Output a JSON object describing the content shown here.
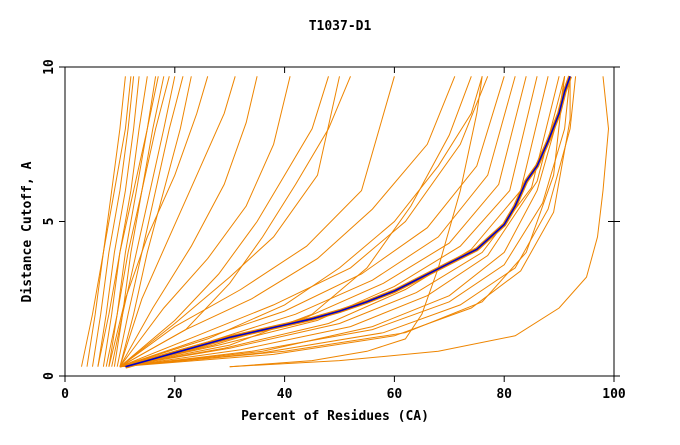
{
  "chart_data": {
    "type": "line",
    "title": "T1037-D1",
    "xlabel": "Percent of Residues (CA)",
    "ylabel": "Distance Cutoff, A",
    "xlim": [
      0,
      100
    ],
    "ylim": [
      0,
      10
    ],
    "x_ticks": [
      "0",
      "20",
      "40",
      "60",
      "80",
      "100"
    ],
    "y_ticks": [
      "0",
      "5",
      "10"
    ],
    "grid": false,
    "legend": "none",
    "colors": {
      "models": "#ee8500",
      "highlight": "#0000cc",
      "axis": "#000000"
    },
    "highlight_series": {
      "points": [
        [
          11,
          0.3
        ],
        [
          15,
          0.5
        ],
        [
          20,
          0.75
        ],
        [
          25,
          1.0
        ],
        [
          30,
          1.25
        ],
        [
          35,
          1.45
        ],
        [
          40,
          1.65
        ],
        [
          45,
          1.85
        ],
        [
          50,
          2.1
        ],
        [
          55,
          2.4
        ],
        [
          60,
          2.75
        ],
        [
          65,
          3.2
        ],
        [
          70,
          3.65
        ],
        [
          75,
          4.1
        ],
        [
          80,
          4.9
        ],
        [
          82,
          5.5
        ],
        [
          84,
          6.3
        ],
        [
          86,
          6.8
        ],
        [
          88,
          7.6
        ],
        [
          90,
          8.5
        ],
        [
          91,
          9.2
        ],
        [
          92,
          9.7
        ]
      ]
    },
    "series": [
      {
        "points": [
          [
            4,
            0.3
          ],
          [
            5.5,
            2
          ],
          [
            7,
            4
          ],
          [
            8.5,
            6
          ],
          [
            10,
            8
          ],
          [
            11,
            9.7
          ]
        ]
      },
      {
        "points": [
          [
            5,
            0.3
          ],
          [
            6.5,
            2
          ],
          [
            8,
            4
          ],
          [
            10,
            6
          ],
          [
            11.5,
            8
          ],
          [
            12.5,
            9.7
          ]
        ]
      },
      {
        "points": [
          [
            6,
            0.3
          ],
          [
            7.5,
            2
          ],
          [
            9,
            4
          ],
          [
            11,
            6
          ],
          [
            12.5,
            8
          ],
          [
            13.5,
            9.7
          ]
        ]
      },
      {
        "points": [
          [
            7,
            0.3
          ],
          [
            8.5,
            2
          ],
          [
            10,
            4
          ],
          [
            12,
            6
          ],
          [
            13.5,
            8
          ],
          [
            15,
            9.7
          ]
        ]
      },
      {
        "points": [
          [
            8,
            0.3
          ],
          [
            9.5,
            2
          ],
          [
            11,
            4
          ],
          [
            13,
            6
          ],
          [
            15,
            8
          ],
          [
            16.5,
            9.7
          ]
        ]
      },
      {
        "points": [
          [
            9,
            0.3
          ],
          [
            10.5,
            2
          ],
          [
            12,
            4
          ],
          [
            14,
            6
          ],
          [
            16,
            8
          ],
          [
            18,
            9.7
          ]
        ]
      },
      {
        "points": [
          [
            6,
            0.3
          ],
          [
            8,
            2
          ],
          [
            10,
            4
          ],
          [
            12.5,
            6
          ],
          [
            15,
            8
          ],
          [
            17,
            9.7
          ]
        ]
      },
      {
        "points": [
          [
            7.5,
            0.3
          ],
          [
            9.5,
            2
          ],
          [
            11.5,
            4
          ],
          [
            14,
            6
          ],
          [
            16.5,
            8
          ],
          [
            19,
            9.7
          ]
        ]
      },
      {
        "points": [
          [
            8.5,
            0.3
          ],
          [
            10.5,
            2
          ],
          [
            13,
            4
          ],
          [
            15.5,
            6
          ],
          [
            18,
            8
          ],
          [
            20,
            9.7
          ]
        ]
      },
      {
        "points": [
          [
            9.5,
            0.3
          ],
          [
            11.5,
            2
          ],
          [
            14,
            4
          ],
          [
            16.5,
            6
          ],
          [
            19,
            8
          ],
          [
            21.5,
            9.7
          ]
        ]
      },
      {
        "points": [
          [
            10,
            0.3
          ],
          [
            12.5,
            2
          ],
          [
            15,
            4
          ],
          [
            18,
            6
          ],
          [
            21,
            8
          ],
          [
            23,
            9.7
          ]
        ]
      },
      {
        "points": [
          [
            3,
            0.3
          ],
          [
            5,
            2
          ],
          [
            7,
            4
          ],
          [
            9,
            6
          ],
          [
            11,
            8
          ],
          [
            12,
            9.7
          ]
        ]
      },
      {
        "points": [
          [
            8,
            0.3
          ],
          [
            11,
            2.5
          ],
          [
            15,
            4.5
          ],
          [
            20,
            6.5
          ],
          [
            24,
            8.5
          ],
          [
            26,
            9.7
          ]
        ]
      },
      {
        "points": [
          [
            10,
            0.3
          ],
          [
            14,
            2.5
          ],
          [
            19,
            4.5
          ],
          [
            24,
            6.5
          ],
          [
            29,
            8.5
          ],
          [
            31,
            9.7
          ]
        ]
      },
      {
        "points": [
          [
            10,
            0.3
          ],
          [
            16,
            2.2
          ],
          [
            23,
            4.2
          ],
          [
            29,
            6.2
          ],
          [
            33,
            8.2
          ],
          [
            35,
            9.7
          ]
        ]
      },
      {
        "points": [
          [
            10,
            0.3
          ],
          [
            18,
            2.2
          ],
          [
            26,
            3.8
          ],
          [
            33,
            5.5
          ],
          [
            38,
            7.5
          ],
          [
            41,
            9.7
          ]
        ]
      },
      {
        "points": [
          [
            10,
            0.3
          ],
          [
            20,
            1.7
          ],
          [
            30,
            3.2
          ],
          [
            38,
            4.5
          ],
          [
            46,
            6.5
          ],
          [
            50,
            9.7
          ]
        ]
      },
      {
        "points": [
          [
            10,
            0.3
          ],
          [
            20,
            1.6
          ],
          [
            32,
            2.8
          ],
          [
            44,
            4.2
          ],
          [
            54,
            6
          ],
          [
            60,
            9.7
          ]
        ]
      },
      {
        "points": [
          [
            10,
            0.3
          ],
          [
            22,
            1.5
          ],
          [
            34,
            2.5
          ],
          [
            46,
            3.8
          ],
          [
            56,
            5.4
          ],
          [
            66,
            7.5
          ],
          [
            71,
            9.7
          ]
        ]
      },
      {
        "points": [
          [
            10,
            0.3
          ],
          [
            24,
            1.3
          ],
          [
            38,
            2.3
          ],
          [
            52,
            3.5
          ],
          [
            62,
            5
          ],
          [
            72,
            7.5
          ],
          [
            77,
            9.7
          ]
        ]
      },
      {
        "points": [
          [
            10,
            0.3
          ],
          [
            25,
            1.2
          ],
          [
            40,
            2.1
          ],
          [
            54,
            3.3
          ],
          [
            66,
            4.8
          ],
          [
            75,
            6.8
          ],
          [
            80,
            9.7
          ]
        ]
      },
      {
        "points": [
          [
            10,
            0.3
          ],
          [
            26,
            1.1
          ],
          [
            42,
            2
          ],
          [
            56,
            3.1
          ],
          [
            68,
            4.5
          ],
          [
            77,
            6.5
          ],
          [
            82,
            9.7
          ]
        ]
      },
      {
        "points": [
          [
            10,
            0.3
          ],
          [
            27,
            1
          ],
          [
            44,
            1.9
          ],
          [
            58,
            3
          ],
          [
            70,
            4.3
          ],
          [
            79,
            6.2
          ],
          [
            84,
            9.7
          ]
        ]
      },
      {
        "points": [
          [
            10,
            0.3
          ],
          [
            28,
            1
          ],
          [
            46,
            1.8
          ],
          [
            60,
            2.9
          ],
          [
            72,
            4.2
          ],
          [
            81,
            6
          ],
          [
            86,
            9.7
          ]
        ]
      },
      {
        "points": [
          [
            10,
            0.3
          ],
          [
            29,
            0.9
          ],
          [
            48,
            1.7
          ],
          [
            62,
            2.8
          ],
          [
            74,
            4.1
          ],
          [
            83,
            6
          ],
          [
            88,
            9.7
          ]
        ]
      },
      {
        "points": [
          [
            10,
            0.3
          ],
          [
            30,
            0.9
          ],
          [
            50,
            1.7
          ],
          [
            64,
            2.7
          ],
          [
            76,
            4
          ],
          [
            85,
            6.1
          ],
          [
            90,
            9.7
          ]
        ]
      },
      {
        "points": [
          [
            10,
            0.3
          ],
          [
            32,
            0.85
          ],
          [
            52,
            1.6
          ],
          [
            66,
            2.6
          ],
          [
            77,
            3.9
          ],
          [
            86,
            6.3
          ],
          [
            91,
            9.7
          ]
        ]
      },
      {
        "points": [
          [
            10,
            0.3
          ],
          [
            34,
            0.8
          ],
          [
            56,
            1.5
          ],
          [
            70,
            2.4
          ],
          [
            80,
            3.6
          ],
          [
            87,
            5.6
          ],
          [
            91,
            8
          ],
          [
            92,
            9.7
          ]
        ]
      },
      {
        "points": [
          [
            10,
            0.3
          ],
          [
            36,
            0.75
          ],
          [
            58,
            1.4
          ],
          [
            72,
            2.3
          ],
          [
            82,
            3.5
          ],
          [
            88,
            5.4
          ],
          [
            92,
            8
          ],
          [
            93,
            9.7
          ]
        ]
      },
      {
        "points": [
          [
            10,
            0.3
          ],
          [
            38,
            0.7
          ],
          [
            60,
            1.3
          ],
          [
            74,
            2.2
          ],
          [
            83,
            3.4
          ],
          [
            89,
            5.3
          ],
          [
            92,
            8.3
          ],
          [
            92,
            9.7
          ]
        ]
      },
      {
        "points": [
          [
            10,
            0.3
          ],
          [
            26,
            1.2
          ],
          [
            40,
            2.3
          ],
          [
            50,
            3.5
          ],
          [
            60,
            5
          ],
          [
            68,
            6.8
          ],
          [
            74,
            8.5
          ],
          [
            76,
            9.7
          ]
        ]
      },
      {
        "points": [
          [
            10,
            0.3
          ],
          [
            22,
            1.5
          ],
          [
            30,
            3
          ],
          [
            36,
            4.5
          ],
          [
            42,
            6.2
          ],
          [
            48,
            8
          ],
          [
            52,
            9.7
          ]
        ]
      },
      {
        "points": [
          [
            10,
            0.3
          ],
          [
            20,
            1.8
          ],
          [
            28,
            3.3
          ],
          [
            35,
            5
          ],
          [
            40,
            6.5
          ],
          [
            45,
            8
          ],
          [
            48,
            9.7
          ]
        ]
      },
      {
        "points": [
          [
            10,
            0.3
          ],
          [
            30,
            1
          ],
          [
            45,
            2
          ],
          [
            55,
            3.5
          ],
          [
            63,
            5.5
          ],
          [
            70,
            7.8
          ],
          [
            74,
            9.7
          ]
        ]
      },
      {
        "points": [
          [
            10,
            0.3
          ],
          [
            40,
            0.8
          ],
          [
            62,
            1.4
          ],
          [
            76,
            2.4
          ],
          [
            84,
            4
          ],
          [
            89,
            6.5
          ],
          [
            91,
            9.7
          ]
        ]
      },
      {
        "points": [
          [
            10,
            0.3
          ],
          [
            36,
            0.8
          ],
          [
            56,
            1.6
          ],
          [
            70,
            2.6
          ],
          [
            80,
            4
          ],
          [
            86,
            6
          ],
          [
            90,
            8.5
          ],
          [
            91,
            9.7
          ]
        ]
      },
      {
        "points": [
          [
            30,
            0.3
          ],
          [
            50,
            0.5
          ],
          [
            68,
            0.8
          ],
          [
            82,
            1.3
          ],
          [
            90,
            2.2
          ],
          [
            95,
            3.2
          ],
          [
            97,
            4.5
          ],
          [
            98,
            6
          ],
          [
            99,
            8
          ],
          [
            98,
            9.7
          ]
        ]
      },
      {
        "points": [
          [
            30,
            0.3
          ],
          [
            45,
            0.5
          ],
          [
            55,
            0.8
          ],
          [
            62,
            1.2
          ],
          [
            65,
            2
          ],
          [
            68,
            3.5
          ],
          [
            72,
            6
          ],
          [
            75,
            8.5
          ],
          [
            76,
            9.7
          ]
        ]
      }
    ]
  }
}
